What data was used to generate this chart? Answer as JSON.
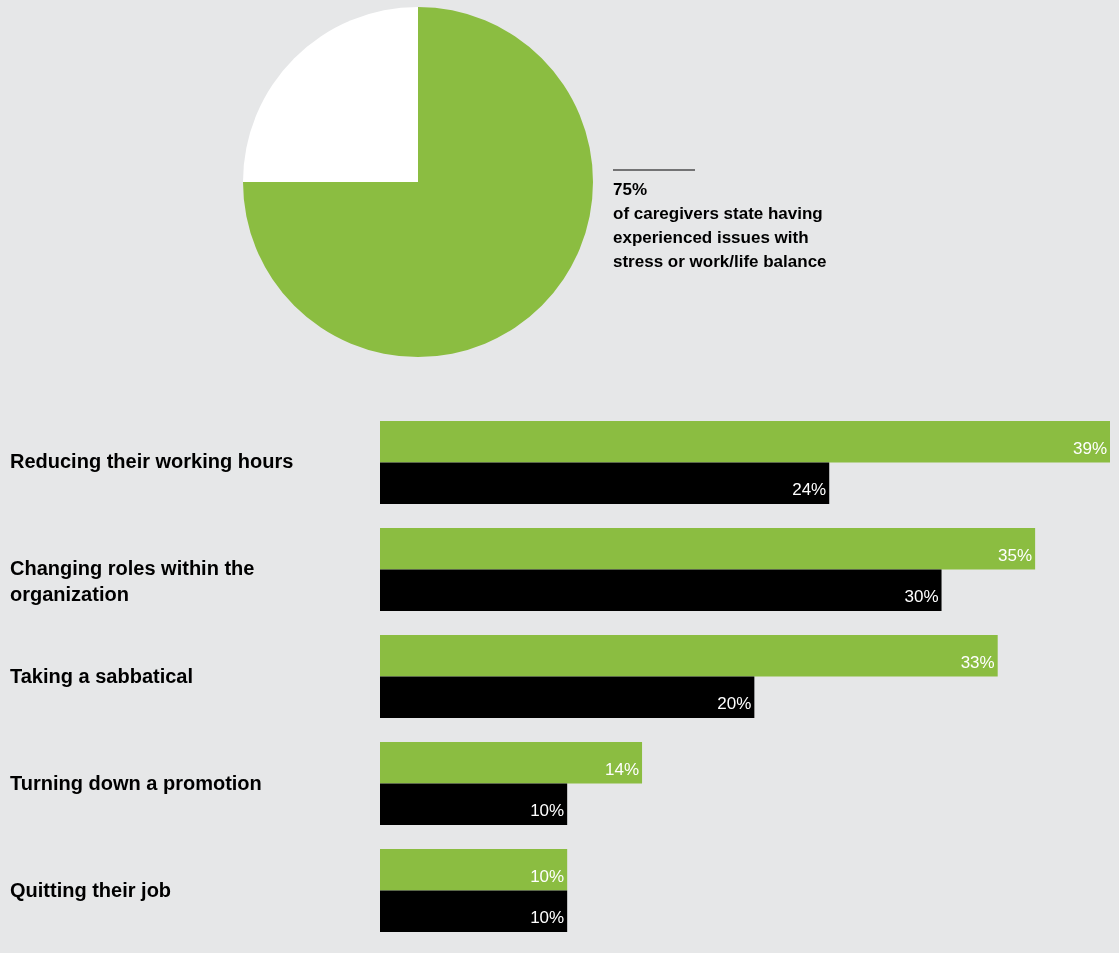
{
  "chart_data": [
    {
      "type": "pie",
      "categories": [
        null,
        null
      ],
      "values": [
        75,
        25
      ],
      "colors": [
        "#8bbd41",
        "#ffffff"
      ],
      "annotations": [
        "75%",
        "of caregivers state having experienced issues with stress or work/life balance"
      ]
    },
    {
      "type": "bar",
      "orientation": "horizontal",
      "tick_labels": "y",
      "categories": [
        "Reducing their working hours",
        "Changing roles within the organization",
        "Taking a sabbatical",
        "Turning down a promotion",
        "Quitting their job"
      ],
      "series": [
        {
          "color": "#8bbd41",
          "values": [
            39,
            35,
            33,
            14,
            10
          ],
          "value_labels": [
            "39%",
            "35%",
            "33%",
            "14%",
            "10%"
          ]
        },
        {
          "color": "#000000",
          "values": [
            24,
            30,
            20,
            10,
            10
          ],
          "value_labels": [
            "24%",
            "30%",
            "20%",
            "10%",
            "10%"
          ]
        }
      ]
    }
  ]
}
